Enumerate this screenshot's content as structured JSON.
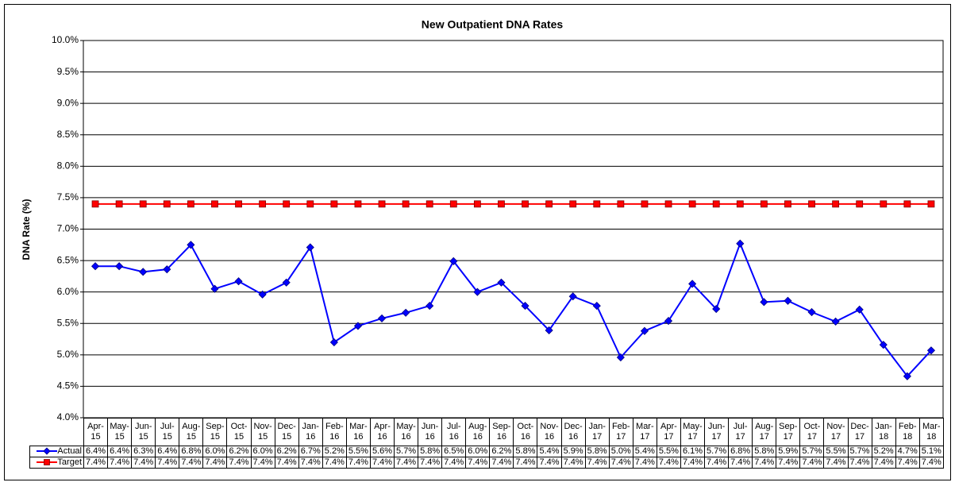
{
  "chart_data": {
    "type": "line",
    "title": "New Outpatient DNA Rates",
    "y_label": "DNA Rate (%)",
    "categories": [
      "Apr-15",
      "May-15",
      "Jun-15",
      "Jul-15",
      "Aug-15",
      "Sep-15",
      "Oct-15",
      "Nov-15",
      "Dec-15",
      "Jan-16",
      "Feb-16",
      "Mar-16",
      "Apr-16",
      "May-16",
      "Jun-16",
      "Jul-16",
      "Aug-16",
      "Sep-16",
      "Oct-16",
      "Nov-16",
      "Dec-16",
      "Jan-17",
      "Feb-17",
      "Mar-17",
      "Apr-17",
      "May-17",
      "Jun-17",
      "Jul-17",
      "Aug-17",
      "Sep-17",
      "Oct-17",
      "Nov-17",
      "Dec-17",
      "Jan-18",
      "Feb-18",
      "Mar-18"
    ],
    "series": [
      {
        "name": "Actual",
        "color": "#0000ff",
        "marker": "diamond",
        "values": [
          6.41,
          6.41,
          6.32,
          6.36,
          6.75,
          6.05,
          6.17,
          5.96,
          6.15,
          6.71,
          5.2,
          5.46,
          5.58,
          5.67,
          5.78,
          6.49,
          6.0,
          6.15,
          5.78,
          5.39,
          5.93,
          5.78,
          4.96,
          5.38,
          5.54,
          6.13,
          5.73,
          6.77,
          5.84,
          5.86,
          5.68,
          5.53,
          5.72,
          5.16,
          4.66,
          5.07
        ],
        "value_labels": [
          "6.4%",
          "6.4%",
          "6.3%",
          "6.4%",
          "6.8%",
          "6.0%",
          "6.2%",
          "6.0%",
          "6.2%",
          "6.7%",
          "5.2%",
          "5.5%",
          "5.6%",
          "5.7%",
          "5.8%",
          "6.5%",
          "6.0%",
          "6.2%",
          "5.8%",
          "5.4%",
          "5.9%",
          "5.8%",
          "5.0%",
          "5.4%",
          "5.5%",
          "6.1%",
          "5.7%",
          "6.8%",
          "5.8%",
          "5.9%",
          "5.7%",
          "5.5%",
          "5.7%",
          "5.2%",
          "4.7%",
          "5.1%"
        ]
      },
      {
        "name": "Target",
        "color": "#ff0000",
        "marker": "square",
        "values": [
          7.4,
          7.4,
          7.4,
          7.4,
          7.4,
          7.4,
          7.4,
          7.4,
          7.4,
          7.4,
          7.4,
          7.4,
          7.4,
          7.4,
          7.4,
          7.4,
          7.4,
          7.4,
          7.4,
          7.4,
          7.4,
          7.4,
          7.4,
          7.4,
          7.4,
          7.4,
          7.4,
          7.4,
          7.4,
          7.4,
          7.4,
          7.4,
          7.4,
          7.4,
          7.4,
          7.4
        ],
        "value_labels": [
          "7.4%",
          "7.4%",
          "7.4%",
          "7.4%",
          "7.4%",
          "7.4%",
          "7.4%",
          "7.4%",
          "7.4%",
          "7.4%",
          "7.4%",
          "7.4%",
          "7.4%",
          "7.4%",
          "7.4%",
          "7.4%",
          "7.4%",
          "7.4%",
          "7.4%",
          "7.4%",
          "7.4%",
          "7.4%",
          "7.4%",
          "7.4%",
          "7.4%",
          "7.4%",
          "7.4%",
          "7.4%",
          "7.4%",
          "7.4%",
          "7.4%",
          "7.4%",
          "7.4%",
          "7.4%",
          "7.4%",
          "7.4%"
        ]
      }
    ],
    "ylim": [
      4,
      10
    ],
    "yticks": [
      {
        "value": 4,
        "label": "4.0%"
      },
      {
        "value": 4.5,
        "label": "4.5%"
      },
      {
        "value": 5,
        "label": "5.0%"
      },
      {
        "value": 5.5,
        "label": "5.5%"
      },
      {
        "value": 6,
        "label": "6.0%"
      },
      {
        "value": 6.5,
        "label": "6.5%"
      },
      {
        "value": 7,
        "label": "7.0%"
      },
      {
        "value": 7.5,
        "label": "7.5%"
      },
      {
        "value": 8,
        "label": "8.0%"
      },
      {
        "value": 8.5,
        "label": "8.5%"
      },
      {
        "value": 9,
        "label": "9.0%"
      },
      {
        "value": 9.5,
        "label": "9.5%"
      },
      {
        "value": 10,
        "label": "10.0%"
      }
    ],
    "grid": true,
    "legend": "data-table"
  }
}
